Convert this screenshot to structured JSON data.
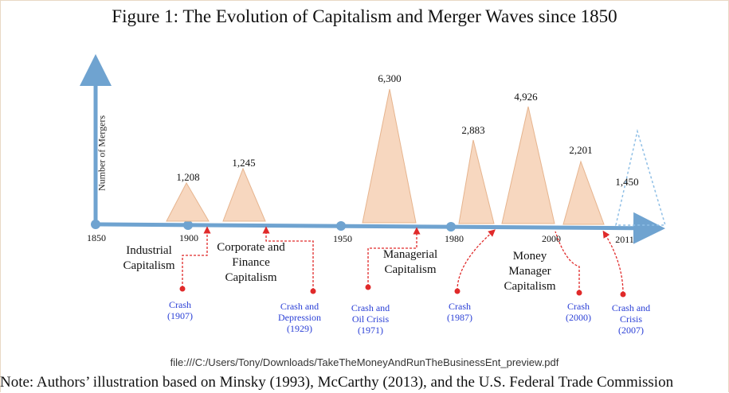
{
  "title": "Figure 1: The Evolution of Capitalism and Merger Waves since 1850",
  "y_axis_label": "Number of Mergers",
  "years": [
    "1850",
    "1900",
    "1950",
    "1980",
    "2000",
    "2011"
  ],
  "eras": [
    {
      "lines": [
        "Industrial",
        "Capitalism"
      ]
    },
    {
      "lines": [
        "Corporate and",
        "Finance",
        "Capitalism"
      ]
    },
    {
      "lines": [
        "Managerial",
        "Capitalism"
      ]
    },
    {
      "lines": [
        "Money",
        "Manager",
        "Capitalism"
      ]
    }
  ],
  "crashes": [
    {
      "lines": [
        "Crash",
        "(1907)"
      ]
    },
    {
      "lines": [
        "Crash and",
        "Depression",
        "(1929)"
      ]
    },
    {
      "lines": [
        "Crash and",
        "Oil Crisis",
        "(1971)"
      ]
    },
    {
      "lines": [
        "Crash",
        "(1987)"
      ]
    },
    {
      "lines": [
        "Crash",
        "(2000)"
      ]
    },
    {
      "lines": [
        "Crash and",
        "Crisis",
        "(2007)"
      ]
    }
  ],
  "source_path": "file:///C:/Users/Tony/Downloads/TakeTheMoneyAndRunTheBusinessEnt_preview.pdf",
  "note": "Note: Authors’ illustration based on Minsky (1993), McCarthy (2013), and the U.S. Federal Trade Commission",
  "colors": {
    "axis": "#6fa3d0",
    "wave_fill": "#f7d7bf",
    "wave_stroke": "#e6b48e",
    "projected_wave": "#8fbfe6",
    "crash_marker": "#e02a2a",
    "crash_text": "#2a3fd6"
  },
  "chart_data": {
    "type": "area",
    "ylabel": "Number of Mergers",
    "waves": [
      {
        "peak_label": "1,208",
        "value": 1208
      },
      {
        "peak_label": "1,245",
        "value": 1245
      },
      {
        "peak_label": "6,300",
        "value": 6300
      },
      {
        "peak_label": "2,883",
        "value": 2883
      },
      {
        "peak_label": "4,926",
        "value": 4926
      },
      {
        "peak_label": "2,201",
        "value": 2201
      },
      {
        "peak_label": "1,450",
        "value": 1450,
        "projected": true
      }
    ]
  }
}
